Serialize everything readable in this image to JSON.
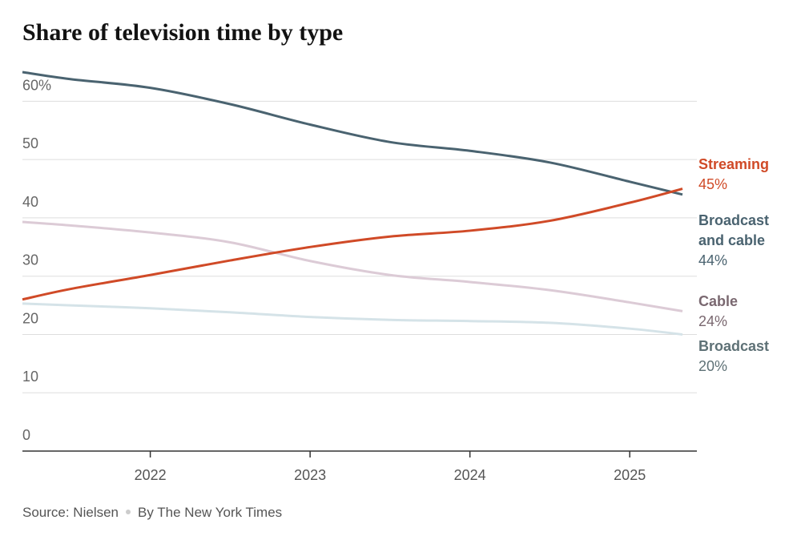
{
  "chart_data": {
    "type": "line",
    "title": "Share of television time by type",
    "x": [
      2021.2,
      2021.5,
      2022,
      2022.5,
      2023,
      2023.5,
      2024,
      2024.5,
      2025,
      2025.33
    ],
    "xlim": [
      2021.2,
      2025.42
    ],
    "xticks": [
      2022,
      2023,
      2024,
      2025
    ],
    "ylim": [
      0,
      65
    ],
    "yticks": [
      0,
      10,
      20,
      30,
      40,
      50,
      {
        "value": 60,
        "label": "60%"
      }
    ],
    "grid": true,
    "series": [
      {
        "name": "Streaming",
        "color": "#d04a27",
        "label_color": "#d04a27",
        "values": [
          26,
          27.8,
          30.2,
          32.7,
          35,
          36.8,
          37.8,
          39.5,
          42.6,
          45
        ],
        "value_labels": [
          null,
          null,
          null,
          null,
          null,
          null,
          null,
          null,
          null,
          "45%"
        ]
      },
      {
        "name": "Broadcast and cable",
        "color": "#4a6370",
        "label_color": "#4a6370",
        "values": [
          65,
          63.8,
          62.3,
          59.5,
          56,
          53,
          51.5,
          49.5,
          46.2,
          44
        ],
        "value_labels": [
          null,
          null,
          null,
          null,
          null,
          null,
          null,
          null,
          null,
          "44%"
        ]
      },
      {
        "name": "Cable",
        "color": "#dccbd6",
        "label_color": "#7a6870",
        "values": [
          39.3,
          38.7,
          37.5,
          35.8,
          32.6,
          30.2,
          29,
          27.6,
          25.5,
          24
        ],
        "value_labels": [
          null,
          null,
          null,
          null,
          null,
          null,
          null,
          null,
          null,
          "24%"
        ]
      },
      {
        "name": "Broadcast",
        "color": "#d5e3e8",
        "label_color": "#5e7176",
        "values": [
          25.3,
          25,
          24.5,
          23.8,
          23,
          22.5,
          22.3,
          22,
          21,
          20
        ],
        "value_labels": [
          null,
          null,
          null,
          null,
          null,
          null,
          null,
          null,
          null,
          "20%"
        ]
      }
    ],
    "source": "Source: Nielsen",
    "credit": "By The New York Times"
  }
}
